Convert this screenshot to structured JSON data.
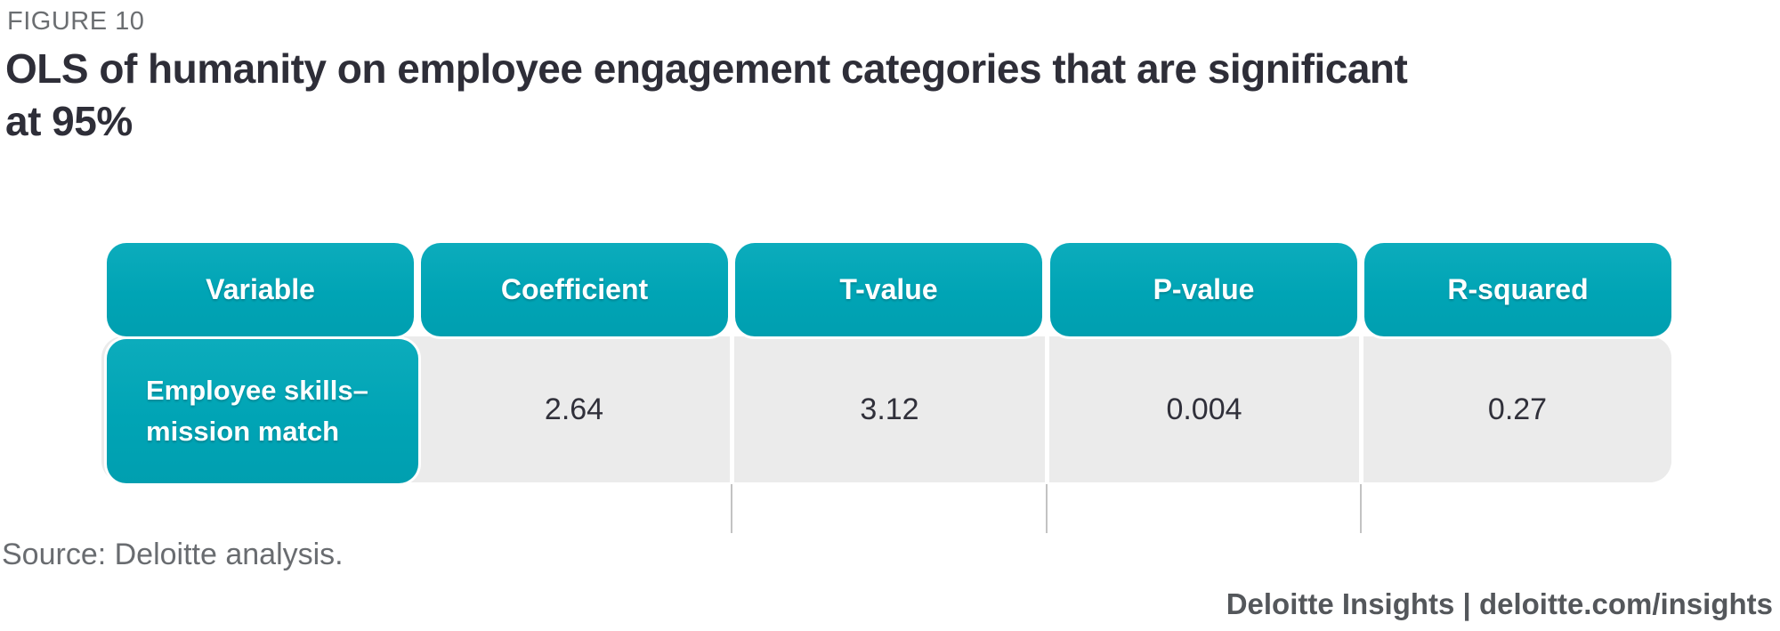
{
  "figure": {
    "label": "FIGURE 10",
    "title_line1": "OLS of humanity on employee engagement categories that are significant",
    "title_line2": "at 95%"
  },
  "table": {
    "headers": [
      "Variable",
      "Coefficient",
      "T-value",
      "P-value",
      "R-squared"
    ],
    "row": {
      "variable": "Employee skills–mission match",
      "coefficient": "2.64",
      "t_value": "3.12",
      "p_value": "0.004",
      "r_squared": "0.27"
    }
  },
  "source": "Source: Deloitte analysis.",
  "footer": "Deloitte Insights | deloitte.com/insights",
  "colors": {
    "teal_header": "#00A4B5",
    "row_background": "#EBEBEB",
    "title_text": "#2E2E38",
    "muted_text": "#696C70",
    "footer_text": "#54575B"
  },
  "chart_data": {
    "type": "table",
    "title": "OLS of humanity on employee engagement categories that are significant at 95%",
    "columns": [
      "Variable",
      "Coefficient",
      "T-value",
      "P-value",
      "R-squared"
    ],
    "rows": [
      [
        "Employee skills–mission match",
        2.64,
        3.12,
        0.004,
        0.27
      ]
    ]
  }
}
